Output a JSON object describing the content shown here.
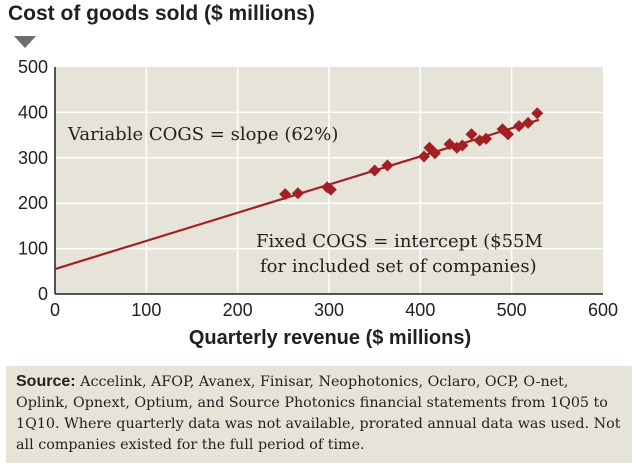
{
  "chart_data": {
    "type": "scatter",
    "title": "Cost of goods sold ($ millions)",
    "xlabel": "Quarterly revenue ($ millions)",
    "ylabel": "Cost of goods sold ($ millions)",
    "xlim": [
      0,
      600
    ],
    "ylim": [
      0,
      500
    ],
    "xticks": [
      "0",
      "100",
      "200",
      "300",
      "400",
      "500",
      "600"
    ],
    "yticks": [
      "0",
      "100",
      "200",
      "300",
      "400",
      "500"
    ],
    "grid": true,
    "series": [
      {
        "marker": "diamond",
        "color": "#a41f24",
        "points": [
          [
            252,
            220
          ],
          [
            266,
            222
          ],
          [
            298,
            235
          ],
          [
            302,
            230
          ],
          [
            350,
            272
          ],
          [
            364,
            283
          ],
          [
            404,
            303
          ],
          [
            410,
            322
          ],
          [
            416,
            310
          ],
          [
            432,
            330
          ],
          [
            440,
            322
          ],
          [
            446,
            327
          ],
          [
            456,
            352
          ],
          [
            465,
            338
          ],
          [
            472,
            342
          ],
          [
            490,
            363
          ],
          [
            496,
            352
          ],
          [
            508,
            370
          ],
          [
            518,
            377
          ],
          [
            528,
            398
          ]
        ]
      }
    ],
    "fit_line": {
      "color": "#a41f24",
      "slope": 0.62,
      "intercept": 55,
      "x_range": [
        0,
        530
      ]
    },
    "annotations": [
      "Variable COGS = slope (62%)",
      "Fixed COGS = intercept ($55M",
      "for included set of companies)"
    ]
  },
  "source": {
    "label": "Source:",
    "text": "Accelink, AFOP, Avanex, Finisar, Neophotonics, Oclaro, OCP, O-net, Oplink, Opnext, Optium, and Source Photonics financial statements from 1Q05 to 1Q10. Where quarterly data was not available, prorated annual data was used.  Not all companies existed for the full period of time."
  },
  "colors": {
    "plot_background": "#e6e3d8",
    "gridline": "#ffffff",
    "data": "#a41f24",
    "text": "#231f20"
  }
}
